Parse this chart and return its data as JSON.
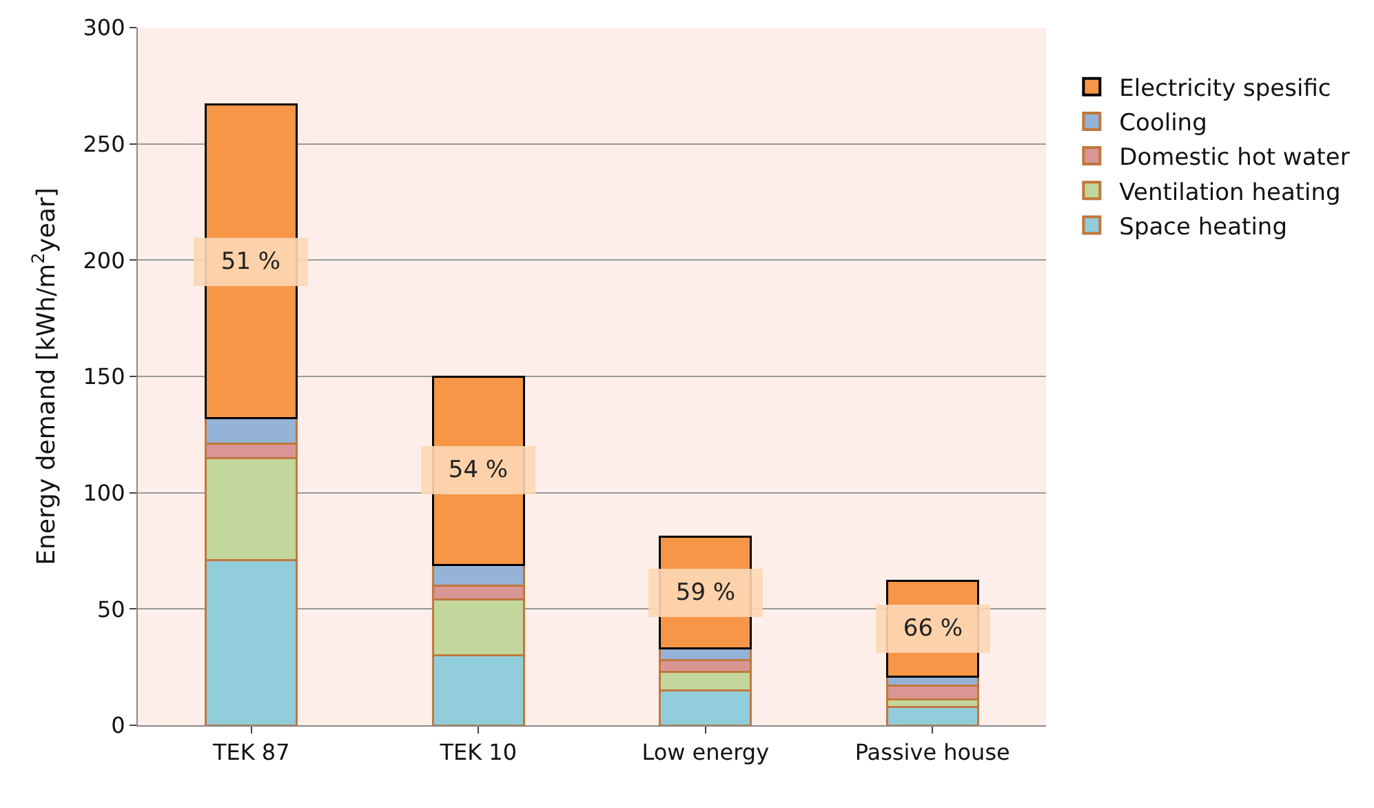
{
  "chart_data": {
    "type": "bar",
    "stacked": true,
    "ylabel": "Energy demand [kWh/m$^{2}$year]",
    "categories": [
      "TEK 87",
      "TEK 10",
      "Low energy",
      "Passive house"
    ],
    "series": [
      {
        "name": "Space heating",
        "color": "#92cddc",
        "values": [
          71,
          30,
          15,
          8
        ]
      },
      {
        "name": "Ventilation heating",
        "color": "#c3d69b",
        "values": [
          44,
          24,
          8,
          3
        ]
      },
      {
        "name": "Domestic hot water",
        "color": "#d99694",
        "values": [
          6,
          6,
          5,
          6
        ]
      },
      {
        "name": "Cooling",
        "color": "#95b3d7",
        "values": [
          11,
          9,
          5,
          4
        ]
      },
      {
        "name": "Electricity spesific",
        "color": "#f79646",
        "values": [
          135,
          81,
          48,
          41
        ]
      }
    ],
    "annotations": [
      "51 %",
      "54 %",
      "59 %",
      "66 %"
    ],
    "ylim": [
      0,
      300
    ],
    "yticks": [
      0,
      50,
      100,
      150,
      200,
      250,
      300
    ],
    "grid": "y",
    "legend": "right"
  }
}
